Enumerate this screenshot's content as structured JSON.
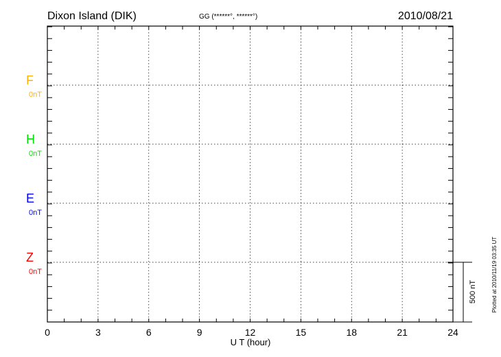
{
  "chart_data": {
    "type": "line",
    "title": "Dixon Island (DIK)",
    "subtitle": "GG (******°, ******°)",
    "date": "2010/08/21",
    "xlabel": "U T (hour)",
    "xlim": [
      0,
      24
    ],
    "xticks": [
      "0",
      "3",
      "6",
      "9",
      "12",
      "15",
      "18",
      "21",
      "24"
    ],
    "grid": true,
    "series": [
      {
        "name": "F",
        "baseline_label": "0nT",
        "color": "#ffb300",
        "values": []
      },
      {
        "name": "H",
        "baseline_label": "0nT",
        "color": "#00e000",
        "values": []
      },
      {
        "name": "E",
        "baseline_label": "0nT",
        "color": "#0000ff",
        "values": []
      },
      {
        "name": "Z",
        "baseline_label": "0nT",
        "color": "#ff0000",
        "values": []
      }
    ],
    "scale_bar": "500 nT",
    "footer": "Plotted at 2010/11/19 03:35 UT"
  }
}
